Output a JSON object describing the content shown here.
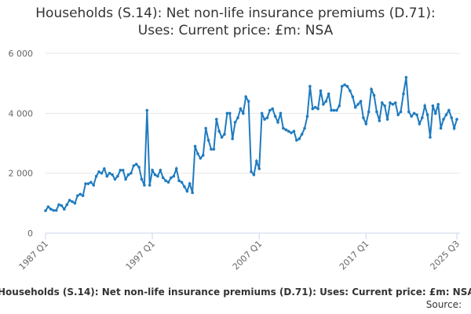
{
  "chart_data": {
    "type": "line",
    "title": "Households (S.14): Net non-life insurance premiums (D.71): Uses: Current price: £m: NSA",
    "source_label": "Source:",
    "categories": [
      "1987 Q1",
      null,
      null,
      null,
      null,
      null,
      null,
      null,
      null,
      null,
      null,
      null,
      null,
      null,
      null,
      null,
      null,
      null,
      null,
      null,
      null,
      null,
      null,
      null,
      null,
      null,
      null,
      null,
      null,
      null,
      null,
      null,
      null,
      null,
      null,
      null,
      null,
      null,
      null,
      null,
      "1997 Q1",
      null,
      null,
      null,
      null,
      null,
      null,
      null,
      null,
      null,
      null,
      null,
      null,
      null,
      null,
      null,
      null,
      null,
      null,
      null,
      null,
      null,
      null,
      null,
      null,
      null,
      null,
      null,
      null,
      null,
      null,
      null,
      null,
      null,
      null,
      null,
      null,
      null,
      null,
      null,
      "2007 Q1",
      null,
      null,
      null,
      null,
      null,
      null,
      null,
      null,
      null,
      null,
      null,
      null,
      null,
      null,
      null,
      null,
      null,
      null,
      null,
      null,
      null,
      null,
      null,
      null,
      null,
      null,
      null,
      null,
      null,
      null,
      null,
      null,
      null,
      null,
      null,
      null,
      null,
      null,
      null,
      "2017 Q1",
      null,
      null,
      null,
      null,
      null,
      null,
      null,
      null,
      null,
      null,
      null,
      null,
      null,
      null,
      null,
      null,
      null,
      null,
      null,
      null,
      null,
      null,
      null,
      null,
      null,
      null,
      null,
      null,
      null,
      null,
      null,
      null,
      null,
      "2025 Q3"
    ],
    "series": [
      {
        "color": "#1f7bbf",
        "values": [
          750,
          880,
          800,
          760,
          760,
          950,
          920,
          800,
          950,
          1100,
          1050,
          1000,
          1250,
          1300,
          1250,
          1650,
          1650,
          1700,
          1600,
          1900,
          2050,
          2000,
          2150,
          1900,
          2000,
          1950,
          1800,
          1900,
          2100,
          2100,
          1800,
          1950,
          2000,
          2250,
          2300,
          2200,
          1800,
          1600,
          4100,
          1600,
          2100,
          1950,
          1900,
          2100,
          1850,
          1750,
          1700,
          1850,
          1900,
          2150,
          1750,
          1700,
          1550,
          1400,
          1650,
          1350,
          2900,
          2650,
          2500,
          2600,
          3500,
          3100,
          2800,
          2800,
          3800,
          3400,
          3200,
          3300,
          4000,
          4000,
          3150,
          3700,
          3850,
          4150,
          4000,
          4550,
          4400,
          2050,
          1950,
          2400,
          2150,
          4000,
          3800,
          3850,
          4100,
          4150,
          3900,
          3700,
          4000,
          3500,
          3450,
          3400,
          3350,
          3400,
          3100,
          3150,
          3300,
          3500,
          3900,
          4900,
          4150,
          4200,
          4150,
          4750,
          4300,
          4400,
          4650,
          4100,
          4100,
          4100,
          4250,
          4900,
          4950,
          4900,
          4750,
          4550,
          4200,
          4300,
          4400,
          3850,
          3650,
          4050,
          4800,
          4600,
          4050,
          3750,
          4350,
          4250,
          3800,
          4350,
          4300,
          4350,
          3950,
          4050,
          4650,
          5200,
          4050,
          3900,
          4000,
          3950,
          3650,
          3850,
          4250,
          3950,
          3200,
          4250,
          4000,
          4300,
          3500,
          3800,
          3950,
          4100,
          3850,
          3500,
          3800
        ]
      }
    ],
    "ylim": [
      0,
      6000
    ],
    "yticks": [
      {
        "value": 0,
        "label": "0"
      },
      {
        "value": 2000,
        "label": "2 000"
      },
      {
        "value": 4000,
        "label": "4 000"
      },
      {
        "value": 6000,
        "label": "6 000"
      }
    ],
    "grid": true
  }
}
